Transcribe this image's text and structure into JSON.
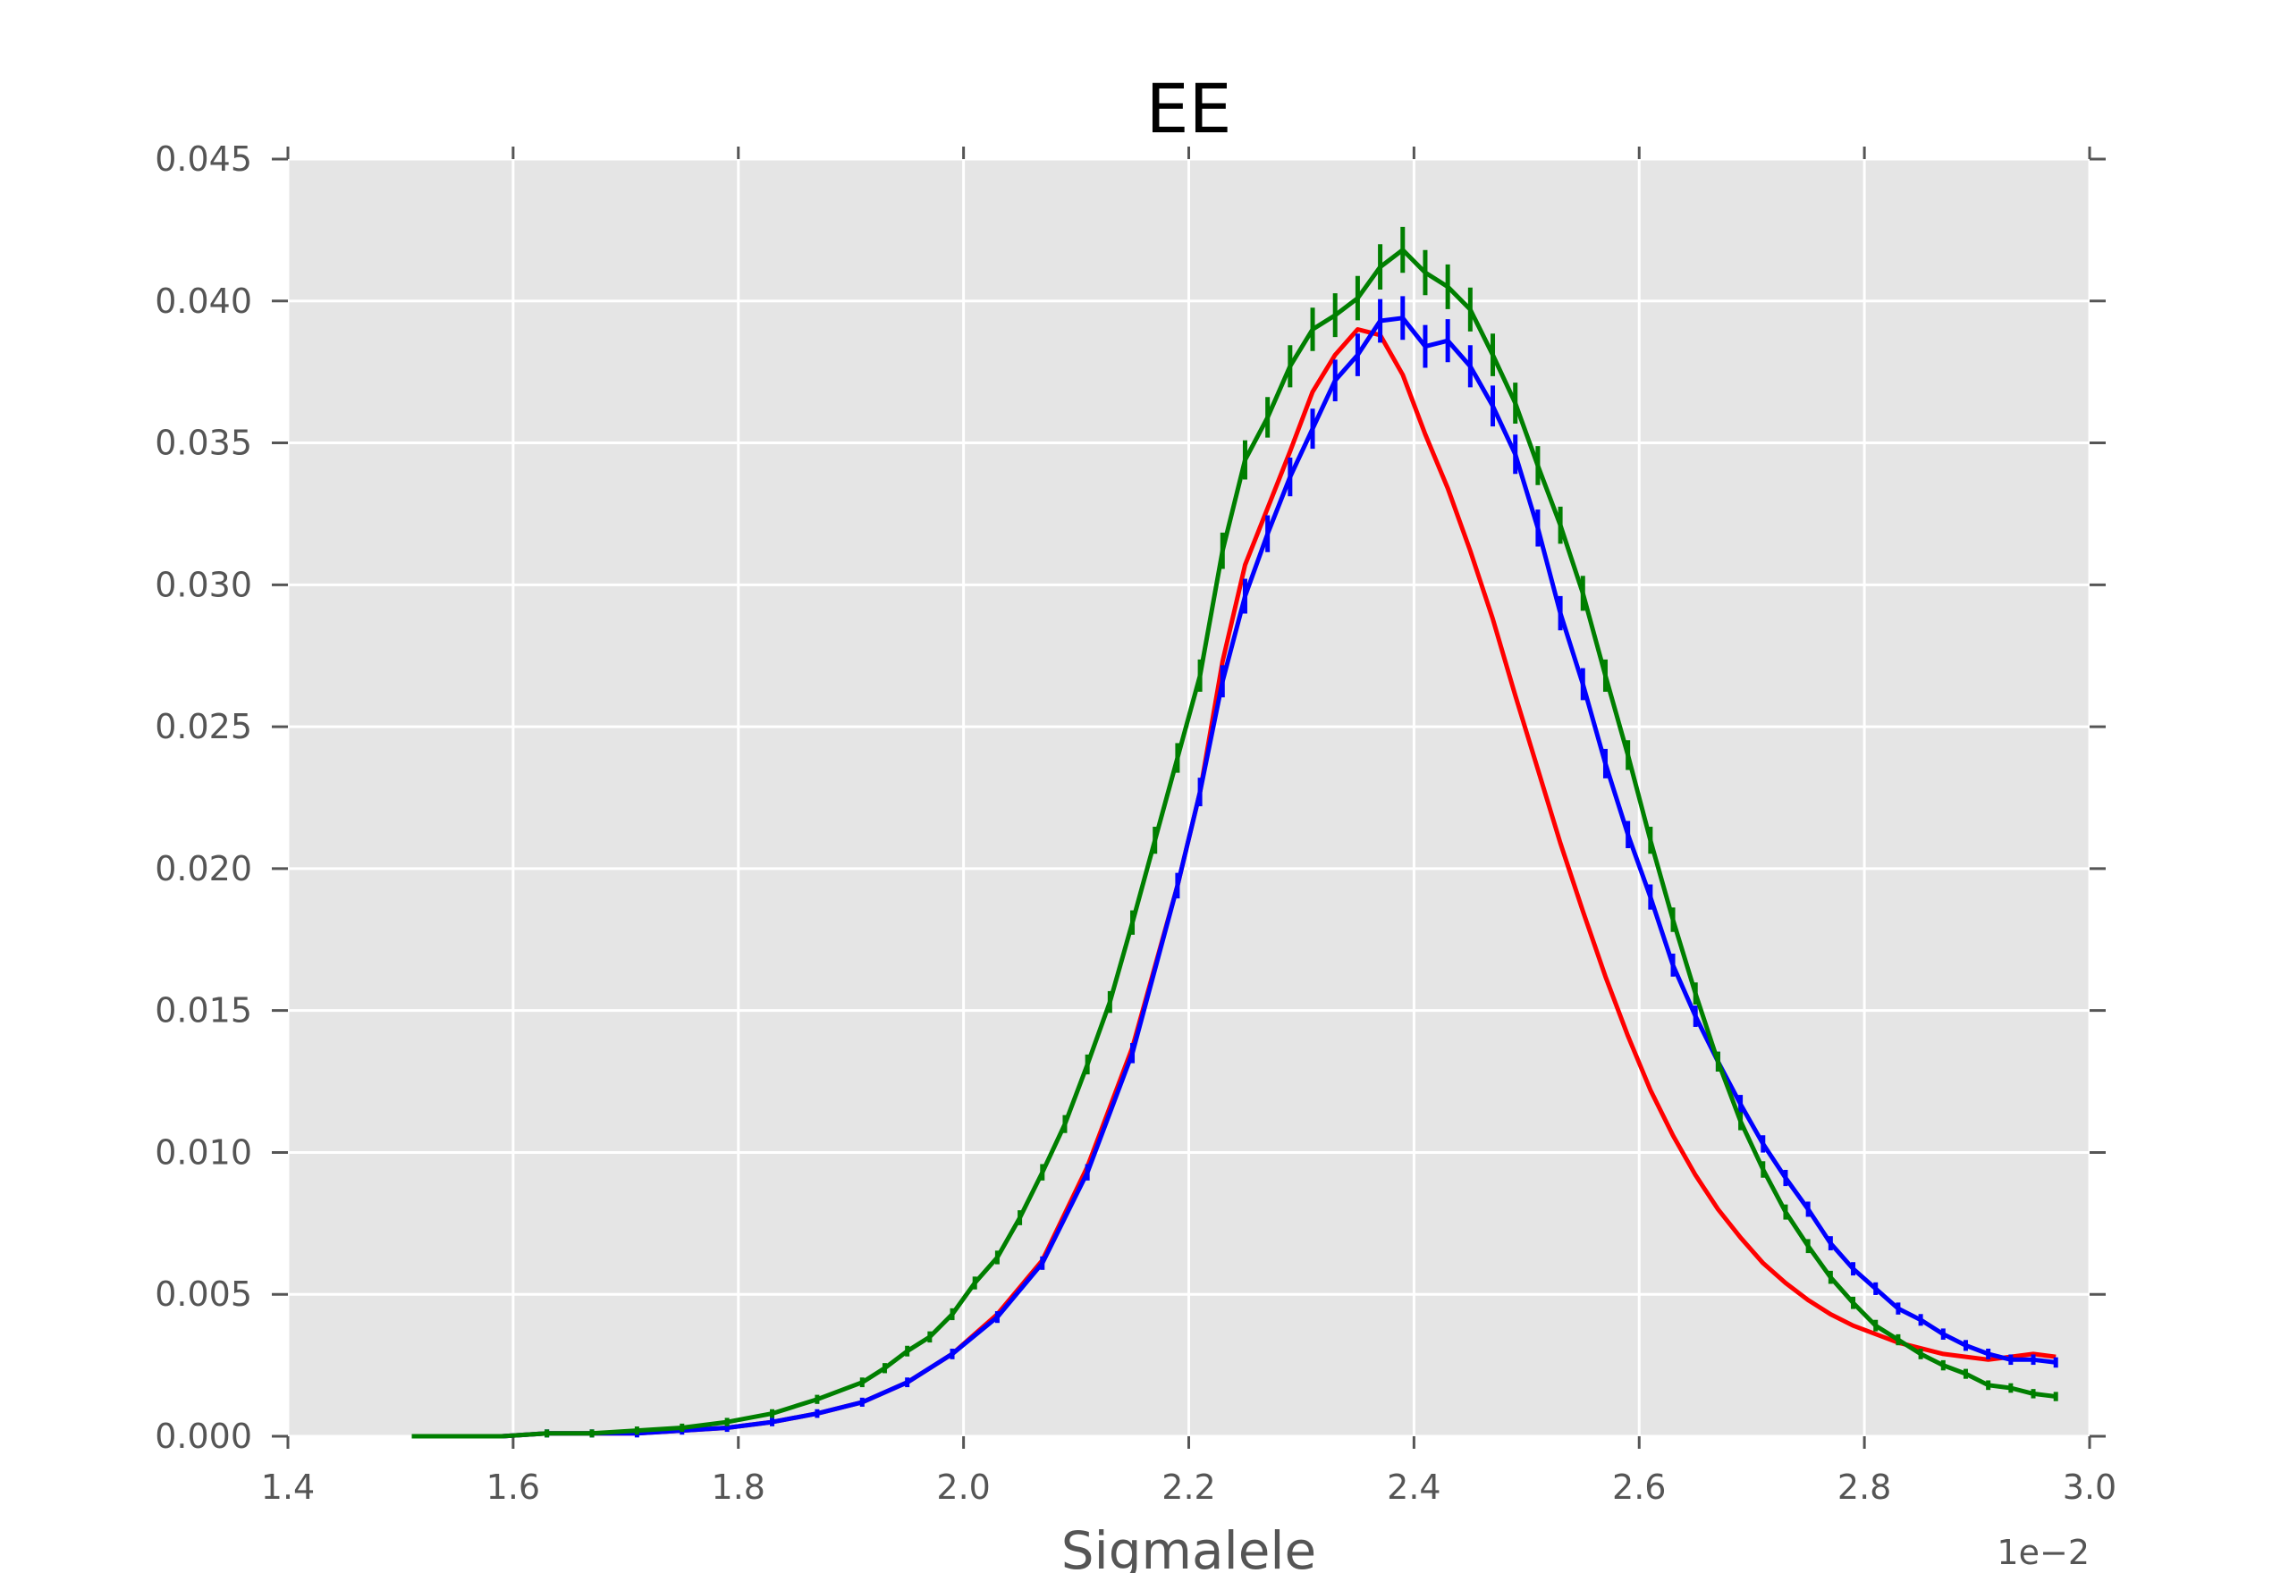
{
  "chart_data": {
    "type": "line",
    "title": "EE",
    "xlabel": "Sigmalele",
    "ylabel": "",
    "x_offset_label": "1e−2",
    "xlim": [
      1.4,
      3.0
    ],
    "ylim": [
      0.0,
      0.045
    ],
    "grid": true,
    "background": "#e5e5e5",
    "xticks": [
      "1.4",
      "1.6",
      "1.8",
      "2.0",
      "2.2",
      "2.4",
      "2.6",
      "2.8",
      "3.0"
    ],
    "yticks": [
      "0.000",
      "0.005",
      "0.010",
      "0.015",
      "0.020",
      "0.025",
      "0.030",
      "0.035",
      "0.040",
      "0.045"
    ],
    "series": [
      {
        "color": "#ff0000",
        "errorbars": false,
        "points": [
          [
            1.51,
            0.0
          ],
          [
            1.55,
            0.0
          ],
          [
            1.59,
            0.0
          ],
          [
            1.63,
            0.0001
          ],
          [
            1.67,
            0.0001
          ],
          [
            1.71,
            0.0001
          ],
          [
            1.75,
            0.0002
          ],
          [
            1.79,
            0.0003
          ],
          [
            1.83,
            0.0005
          ],
          [
            1.87,
            0.0008
          ],
          [
            1.91,
            0.0012
          ],
          [
            1.95,
            0.0019
          ],
          [
            1.99,
            0.0029
          ],
          [
            2.03,
            0.0043
          ],
          [
            2.07,
            0.0062
          ],
          [
            2.11,
            0.0095
          ],
          [
            2.15,
            0.0137
          ],
          [
            2.19,
            0.0194
          ],
          [
            2.21,
            0.0227
          ],
          [
            2.23,
            0.0273
          ],
          [
            2.25,
            0.0307
          ],
          [
            2.27,
            0.0327
          ],
          [
            2.29,
            0.0347
          ],
          [
            2.31,
            0.0368
          ],
          [
            2.33,
            0.0381
          ],
          [
            2.35,
            0.039
          ],
          [
            2.37,
            0.0388
          ],
          [
            2.39,
            0.0374
          ],
          [
            2.41,
            0.0353
          ],
          [
            2.43,
            0.0334
          ],
          [
            2.45,
            0.0312
          ],
          [
            2.47,
            0.0288
          ],
          [
            2.49,
            0.0261
          ],
          [
            2.51,
            0.0235
          ],
          [
            2.53,
            0.0209
          ],
          [
            2.55,
            0.0185
          ],
          [
            2.57,
            0.0162
          ],
          [
            2.59,
            0.0141
          ],
          [
            2.61,
            0.0122
          ],
          [
            2.63,
            0.0106
          ],
          [
            2.65,
            0.0092
          ],
          [
            2.67,
            0.008
          ],
          [
            2.69,
            0.007
          ],
          [
            2.71,
            0.0061
          ],
          [
            2.73,
            0.0054
          ],
          [
            2.75,
            0.0048
          ],
          [
            2.77,
            0.0043
          ],
          [
            2.79,
            0.0039
          ],
          [
            2.81,
            0.0036
          ],
          [
            2.83,
            0.0033
          ],
          [
            2.85,
            0.0031
          ],
          [
            2.87,
            0.0029
          ],
          [
            2.89,
            0.0028
          ],
          [
            2.91,
            0.0027
          ],
          [
            2.93,
            0.0028
          ],
          [
            2.95,
            0.0029
          ],
          [
            2.97,
            0.0028
          ]
        ]
      },
      {
        "color": "#0000ff",
        "errorbars": true,
        "points": [
          [
            1.51,
            0.0
          ],
          [
            1.55,
            0.0
          ],
          [
            1.59,
            0.0
          ],
          [
            1.63,
            0.0001
          ],
          [
            1.67,
            0.0001
          ],
          [
            1.71,
            0.0001
          ],
          [
            1.75,
            0.0002
          ],
          [
            1.79,
            0.0003
          ],
          [
            1.83,
            0.0005
          ],
          [
            1.87,
            0.0008
          ],
          [
            1.91,
            0.0012
          ],
          [
            1.95,
            0.0019
          ],
          [
            1.99,
            0.0029
          ],
          [
            2.03,
            0.0042
          ],
          [
            2.07,
            0.0061
          ],
          [
            2.11,
            0.0093
          ],
          [
            2.15,
            0.0135
          ],
          [
            2.19,
            0.0194
          ],
          [
            2.21,
            0.0227
          ],
          [
            2.23,
            0.0266
          ],
          [
            2.25,
            0.0296
          ],
          [
            2.27,
            0.0318
          ],
          [
            2.29,
            0.0338
          ],
          [
            2.31,
            0.0355
          ],
          [
            2.33,
            0.0372
          ],
          [
            2.35,
            0.0381
          ],
          [
            2.37,
            0.0393
          ],
          [
            2.39,
            0.0394
          ],
          [
            2.41,
            0.0384
          ],
          [
            2.43,
            0.0386
          ],
          [
            2.45,
            0.0377
          ],
          [
            2.47,
            0.0363
          ],
          [
            2.49,
            0.0346
          ],
          [
            2.51,
            0.032
          ],
          [
            2.53,
            0.029
          ],
          [
            2.55,
            0.0265
          ],
          [
            2.57,
            0.0237
          ],
          [
            2.59,
            0.0212
          ],
          [
            2.61,
            0.019
          ],
          [
            2.63,
            0.0166
          ],
          [
            2.65,
            0.0148
          ],
          [
            2.67,
            0.0132
          ],
          [
            2.69,
            0.0117
          ],
          [
            2.71,
            0.0103
          ],
          [
            2.73,
            0.0091
          ],
          [
            2.75,
            0.008
          ],
          [
            2.77,
            0.0068
          ],
          [
            2.79,
            0.0059
          ],
          [
            2.81,
            0.0052
          ],
          [
            2.83,
            0.0045
          ],
          [
            2.85,
            0.0041
          ],
          [
            2.87,
            0.0036
          ],
          [
            2.89,
            0.0032
          ],
          [
            2.91,
            0.0029
          ],
          [
            2.93,
            0.0027
          ],
          [
            2.95,
            0.0027
          ],
          [
            2.97,
            0.0026
          ]
        ]
      },
      {
        "color": "#007f00",
        "errorbars": true,
        "points": [
          [
            1.51,
            0.0
          ],
          [
            1.55,
            0.0
          ],
          [
            1.59,
            0.0
          ],
          [
            1.63,
            0.0001
          ],
          [
            1.67,
            0.0001
          ],
          [
            1.71,
            0.0002
          ],
          [
            1.75,
            0.0003
          ],
          [
            1.79,
            0.0005
          ],
          [
            1.83,
            0.0008
          ],
          [
            1.87,
            0.0013
          ],
          [
            1.91,
            0.0019
          ],
          [
            1.93,
            0.0024
          ],
          [
            1.95,
            0.003
          ],
          [
            1.97,
            0.0035
          ],
          [
            1.99,
            0.0043
          ],
          [
            2.01,
            0.0054
          ],
          [
            2.03,
            0.0063
          ],
          [
            2.05,
            0.0077
          ],
          [
            2.07,
            0.0093
          ],
          [
            2.09,
            0.011
          ],
          [
            2.11,
            0.0131
          ],
          [
            2.13,
            0.0153
          ],
          [
            2.15,
            0.0181
          ],
          [
            2.17,
            0.021
          ],
          [
            2.19,
            0.0239
          ],
          [
            2.21,
            0.0268
          ],
          [
            2.23,
            0.0312
          ],
          [
            2.25,
            0.0344
          ],
          [
            2.27,
            0.0359
          ],
          [
            2.29,
            0.0377
          ],
          [
            2.31,
            0.039
          ],
          [
            2.33,
            0.0395
          ],
          [
            2.35,
            0.0401
          ],
          [
            2.37,
            0.0412
          ],
          [
            2.39,
            0.0418
          ],
          [
            2.41,
            0.041
          ],
          [
            2.43,
            0.0405
          ],
          [
            2.45,
            0.0397
          ],
          [
            2.47,
            0.0381
          ],
          [
            2.49,
            0.0364
          ],
          [
            2.51,
            0.0342
          ],
          [
            2.53,
            0.0321
          ],
          [
            2.55,
            0.0297
          ],
          [
            2.57,
            0.0268
          ],
          [
            2.59,
            0.024
          ],
          [
            2.61,
            0.021
          ],
          [
            2.63,
            0.0182
          ],
          [
            2.65,
            0.0156
          ],
          [
            2.67,
            0.0132
          ],
          [
            2.69,
            0.0111
          ],
          [
            2.71,
            0.0094
          ],
          [
            2.73,
            0.0079
          ],
          [
            2.75,
            0.0067
          ],
          [
            2.77,
            0.0056
          ],
          [
            2.79,
            0.0047
          ],
          [
            2.81,
            0.0039
          ],
          [
            2.83,
            0.0034
          ],
          [
            2.85,
            0.0029
          ],
          [
            2.87,
            0.0025
          ],
          [
            2.89,
            0.0022
          ],
          [
            2.91,
            0.0018
          ],
          [
            2.93,
            0.0017
          ],
          [
            2.95,
            0.0015
          ],
          [
            2.97,
            0.0014
          ]
        ]
      }
    ]
  }
}
